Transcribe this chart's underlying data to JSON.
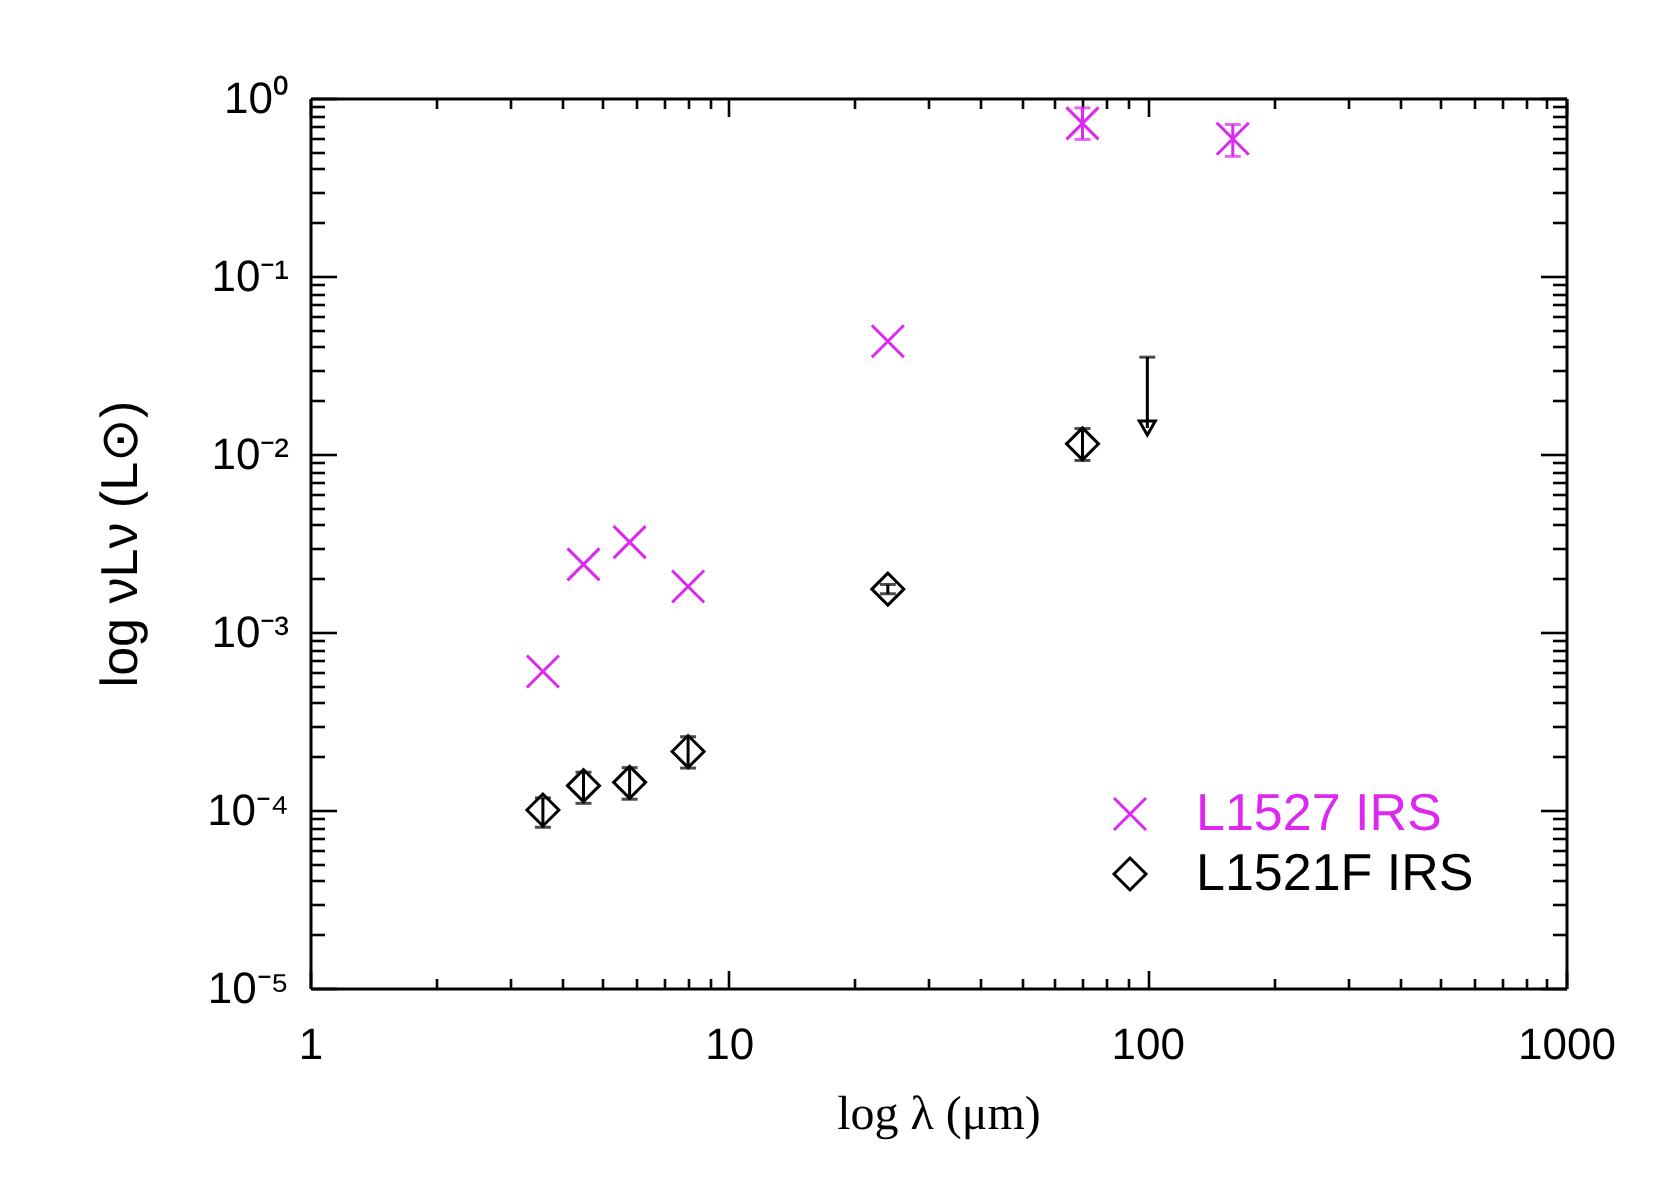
{
  "chart_data": {
    "type": "scatter",
    "xlabel": "log λ (μm)",
    "ylabel": "log νLν (L⊙)",
    "log": "xy",
    "xlim": [
      1,
      1000
    ],
    "ylim": [
      1e-05,
      1
    ],
    "xticks": [
      1,
      {
        "value": 2,
        "label": null
      },
      {
        "value": 3,
        "label": null
      },
      {
        "value": 4,
        "label": null
      },
      {
        "value": 5,
        "label": null
      },
      {
        "value": 6,
        "label": null
      },
      {
        "value": 7,
        "label": null
      },
      {
        "value": 8,
        "label": null
      },
      {
        "value": 9,
        "label": null
      },
      10,
      {
        "value": 20,
        "label": null
      },
      {
        "value": 30,
        "label": null
      },
      {
        "value": 40,
        "label": null
      },
      {
        "value": 50,
        "label": null
      },
      {
        "value": 60,
        "label": null
      },
      {
        "value": 70,
        "label": null
      },
      {
        "value": 80,
        "label": null
      },
      {
        "value": 90,
        "label": null
      },
      100,
      {
        "value": 200,
        "label": null
      },
      {
        "value": 300,
        "label": null
      },
      {
        "value": 400,
        "label": null
      },
      {
        "value": 500,
        "label": null
      },
      {
        "value": 600,
        "label": null
      },
      {
        "value": 700,
        "label": null
      },
      {
        "value": 800,
        "label": null
      },
      {
        "value": 900,
        "label": null
      },
      1000
    ],
    "yticks": [
      {
        "value": 1e-05,
        "label": "10⁻⁵"
      },
      {
        "value": 2e-05,
        "label": null
      },
      {
        "value": 3e-05,
        "label": null
      },
      {
        "value": 4e-05,
        "label": null
      },
      {
        "value": 5e-05,
        "label": null
      },
      {
        "value": 6e-05,
        "label": null
      },
      {
        "value": 7e-05,
        "label": null
      },
      {
        "value": 8e-05,
        "label": null
      },
      {
        "value": 9e-05,
        "label": null
      },
      {
        "value": 0.0001,
        "label": "10⁻⁴"
      },
      {
        "value": 0.0002,
        "label": null
      },
      {
        "value": 0.0003,
        "label": null
      },
      {
        "value": 0.0004,
        "label": null
      },
      {
        "value": 0.0005,
        "label": null
      },
      {
        "value": 0.0006,
        "label": null
      },
      {
        "value": 0.0007,
        "label": null
      },
      {
        "value": 0.0008,
        "label": null
      },
      {
        "value": 0.0009,
        "label": null
      },
      {
        "value": 0.001,
        "label": "10⁻³"
      },
      {
        "value": 0.002,
        "label": null
      },
      {
        "value": 0.003,
        "label": null
      },
      {
        "value": 0.004,
        "label": null
      },
      {
        "value": 0.005,
        "label": null
      },
      {
        "value": 0.006,
        "label": null
      },
      {
        "value": 0.007,
        "label": null
      },
      {
        "value": 0.008,
        "label": null
      },
      {
        "value": 0.009,
        "label": null
      },
      {
        "value": 0.01,
        "label": "10⁻²"
      },
      {
        "value": 0.02,
        "label": null
      },
      {
        "value": 0.03,
        "label": null
      },
      {
        "value": 0.04,
        "label": null
      },
      {
        "value": 0.05,
        "label": null
      },
      {
        "value": 0.06,
        "label": null
      },
      {
        "value": 0.07,
        "label": null
      },
      {
        "value": 0.08,
        "label": null
      },
      {
        "value": 0.09,
        "label": null
      },
      {
        "value": 0.1,
        "label": "10⁻¹"
      },
      {
        "value": 0.2,
        "label": null
      },
      {
        "value": 0.3,
        "label": null
      },
      {
        "value": 0.4,
        "label": null
      },
      {
        "value": 0.5,
        "label": null
      },
      {
        "value": 0.6,
        "label": null
      },
      {
        "value": 0.7,
        "label": null
      },
      {
        "value": 0.8,
        "label": null
      },
      {
        "value": 0.9,
        "label": null
      },
      {
        "value": 1,
        "label": "10⁰"
      }
    ],
    "legend": "bottom right",
    "series": [
      {
        "name": "L1527 IRS",
        "color": "#dc28f0",
        "marker": "cross",
        "x": [
          3.6,
          4.5,
          5.8,
          8.0,
          24,
          70,
          160
        ],
        "values": [
          0.0006,
          0.0024,
          0.0032,
          0.0018,
          0.043,
          0.72,
          0.59
        ],
        "errors": [
          null,
          null,
          null,
          null,
          null,
          [
            0.585,
            0.88
          ],
          [
            0.47,
            0.71
          ]
        ]
      },
      {
        "name": "L1521F IRS",
        "color": "#000000",
        "marker": "diamond",
        "x": [
          3.6,
          4.5,
          5.8,
          8.0,
          24,
          70
        ],
        "values": [
          0.0001,
          0.000137,
          0.000143,
          0.000213,
          0.00174,
          0.0114
        ],
        "errors": [
          [
            8e-05,
            0.000117
          ],
          [
            0.000109,
            0.000163
          ],
          [
            0.000115,
            0.000173
          ],
          [
            0.000172,
            0.000258
          ],
          [
            0.00164,
            0.00185
          ],
          [
            0.0092,
            0.0139
          ]
        ]
      },
      {
        "type": "scatter",
        "color": "#000000",
        "marker": "triangle",
        "x": [
          100
        ],
        "values": [
          0.014
        ],
        "errors": [
          [
            0.014,
            0.035
          ]
        ]
      }
    ]
  }
}
